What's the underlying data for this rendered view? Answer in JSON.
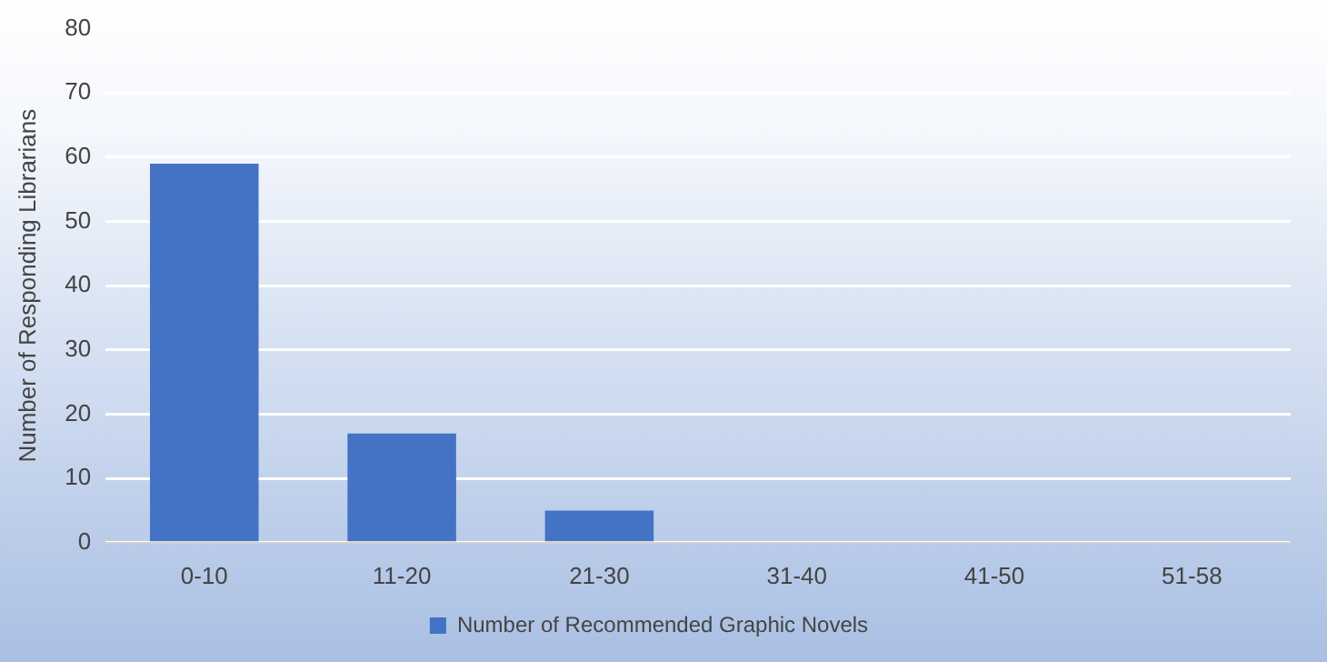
{
  "chart_data": {
    "type": "bar",
    "ylabel": "Number of Responding Librarians",
    "categories": [
      "0-10",
      "11-20",
      "21-30",
      "31-40",
      "41-50",
      "51-58"
    ],
    "series": [
      {
        "name": "Number of Recommended Graphic Novels",
        "color": "#4472c4",
        "values": [
          59,
          17,
          5,
          0,
          0,
          0
        ]
      }
    ],
    "ylim": [
      0,
      80
    ],
    "yticks": [
      0,
      10,
      20,
      30,
      40,
      50,
      60,
      70,
      80
    ],
    "grid": "y",
    "legend": "bottom"
  }
}
